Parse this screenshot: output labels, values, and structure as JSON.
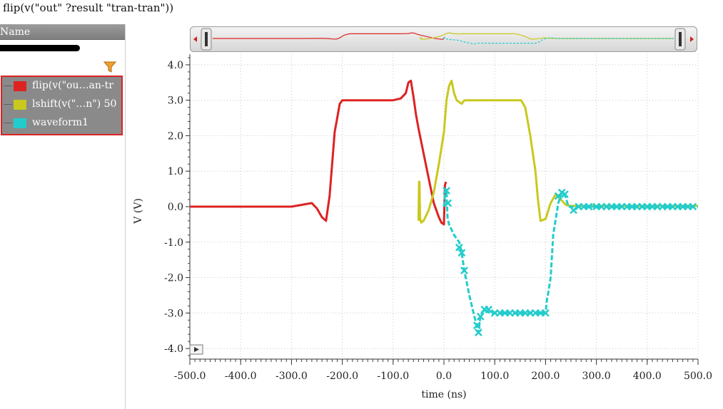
{
  "window": {
    "title": "flip(v(\"out\" ?result \"tran-tran\"))"
  },
  "sidebar": {
    "header": "Name",
    "legend": [
      {
        "label": "flip(v(\"ou…an-tr",
        "color": "#dd2222"
      },
      {
        "label": "lshift(v(\"…n\") 50",
        "color": "#c8c81e"
      },
      {
        "label": "waveform1",
        "color": "#22cccc"
      }
    ]
  },
  "chart_data": {
    "type": "line",
    "xlabel": "time (ns)",
    "ylabel": "V (V)",
    "xlim": [
      -500,
      500
    ],
    "ylim": [
      -4.3,
      4.3
    ],
    "xticks": [
      "-500.0",
      "-400.0",
      "-300.0",
      "-200.0",
      "-100.0",
      "0.0",
      "100.0",
      "200.0",
      "300.0",
      "400.0",
      "500.0"
    ],
    "yticks": [
      "4.0",
      "3.0",
      "2.0",
      "1.0",
      "0.0",
      "-1.0",
      "-2.0",
      "-3.0",
      "-4.0"
    ],
    "grid": true,
    "series": [
      {
        "name": "flip(v(\"ou…an-tr",
        "color": "#dd2222",
        "x": [
          -500,
          -300,
          -280,
          -260,
          -250,
          -240,
          -232,
          -225,
          -215,
          -205,
          -200,
          -195,
          -150,
          -100,
          -85,
          -75,
          -70,
          -65,
          -60,
          -55,
          -50,
          -40,
          -30,
          -20,
          -10,
          -5,
          0,
          2,
          4
        ],
        "y": [
          0,
          0,
          0.05,
          0.1,
          -0.05,
          -0.3,
          -0.4,
          0.3,
          2.1,
          2.9,
          3.0,
          3.0,
          3.0,
          3.0,
          3.05,
          3.2,
          3.5,
          3.55,
          3.1,
          2.6,
          2.2,
          1.5,
          0.8,
          0.1,
          -0.3,
          -0.45,
          -0.5,
          0.6,
          0.7
        ]
      },
      {
        "name": "lshift(v(\"…n\") 50",
        "color": "#c8c81e",
        "x": [
          -50,
          -49,
          -48,
          -47,
          -45,
          -40,
          -30,
          -20,
          -10,
          0,
          5,
          10,
          15,
          20,
          25,
          30,
          35,
          40,
          50,
          100,
          140,
          148,
          150,
          152,
          160,
          170,
          180,
          185,
          190,
          200,
          210,
          220,
          230,
          240,
          250,
          500
        ],
        "y": [
          -0.4,
          0.7,
          0.7,
          -0.3,
          -0.45,
          -0.4,
          -0.1,
          0.4,
          1.2,
          2.1,
          3.0,
          3.4,
          3.55,
          3.2,
          3.0,
          2.95,
          2.9,
          3.0,
          3.0,
          3.0,
          3.0,
          3.0,
          3.0,
          3.0,
          2.8,
          2.0,
          1.0,
          0.2,
          -0.4,
          -0.35,
          0.1,
          0.35,
          0.2,
          0.05,
          0.02,
          0.02
        ]
      },
      {
        "name": "waveform1",
        "color": "#22cccc",
        "x": [
          0,
          3,
          5,
          7,
          10,
          20,
          30,
          35,
          40,
          50,
          60,
          68,
          72,
          80,
          90,
          100,
          140,
          200,
          203,
          205,
          210,
          215,
          225,
          232,
          238,
          245,
          500
        ],
        "y": [
          0.0,
          0.5,
          0.4,
          -0.3,
          -0.5,
          -0.8,
          -1.0,
          -1.3,
          -1.8,
          -2.5,
          -3.1,
          -3.55,
          -3.05,
          -2.9,
          -3.0,
          -3.0,
          -3.0,
          -3.0,
          -2.6,
          -2.45,
          -2.0,
          -0.8,
          0.1,
          0.4,
          0.35,
          0.0,
          0.0
        ]
      }
    ],
    "markers_series": 2,
    "marker_x": [
      5,
      8,
      30,
      35,
      40,
      65,
      68,
      72,
      80,
      88,
      100,
      110,
      120,
      130,
      140,
      150,
      160,
      170,
      180,
      190,
      200,
      225,
      232,
      238,
      255,
      265,
      275,
      285,
      300,
      310,
      320,
      330,
      340,
      350,
      360,
      370,
      380,
      390,
      400,
      410,
      420,
      430,
      440,
      450,
      460,
      470,
      480,
      490
    ],
    "marker_y": [
      0.45,
      0.1,
      -1.15,
      -1.3,
      -1.8,
      -3.35,
      -3.55,
      -3.1,
      -2.9,
      -2.9,
      -3.0,
      -3.0,
      -3.0,
      -3.0,
      -3.0,
      -3.0,
      -3.0,
      -3.0,
      -3.0,
      -3.0,
      -3.0,
      0.3,
      0.4,
      0.35,
      -0.1,
      0.0,
      0.0,
      0.0,
      0.0,
      0.0,
      0.0,
      0.0,
      0.0,
      0.0,
      0.0,
      0.0,
      0.0,
      0.0,
      0.0,
      0.0,
      0.0,
      0.0,
      0.0,
      0.0,
      0.0,
      0.0,
      0.0,
      0.0
    ]
  }
}
